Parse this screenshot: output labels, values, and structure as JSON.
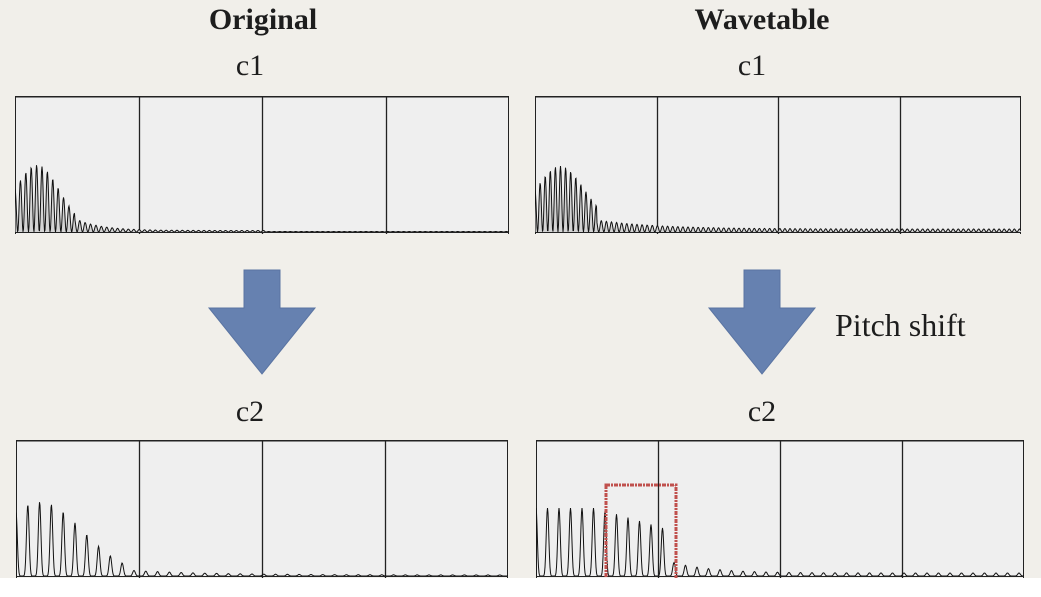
{
  "headings": {
    "left": "Original",
    "right": "Wavetable"
  },
  "annotation": "Pitch shift",
  "colors": {
    "background": "#f1efea",
    "panel": "#efefef",
    "arrow": "#6681b0",
    "highlight": "#c0504d",
    "waveform_fill": "#d4d4d4"
  },
  "panels": [
    {
      "id": "orig-c1",
      "label": "c1"
    },
    {
      "id": "wave-c1",
      "label": "c1"
    },
    {
      "id": "orig-c2",
      "label": "c2"
    },
    {
      "id": "wave-c2",
      "label": "c2"
    }
  ],
  "icons": {
    "down_arrow": "down-arrow-icon"
  }
}
